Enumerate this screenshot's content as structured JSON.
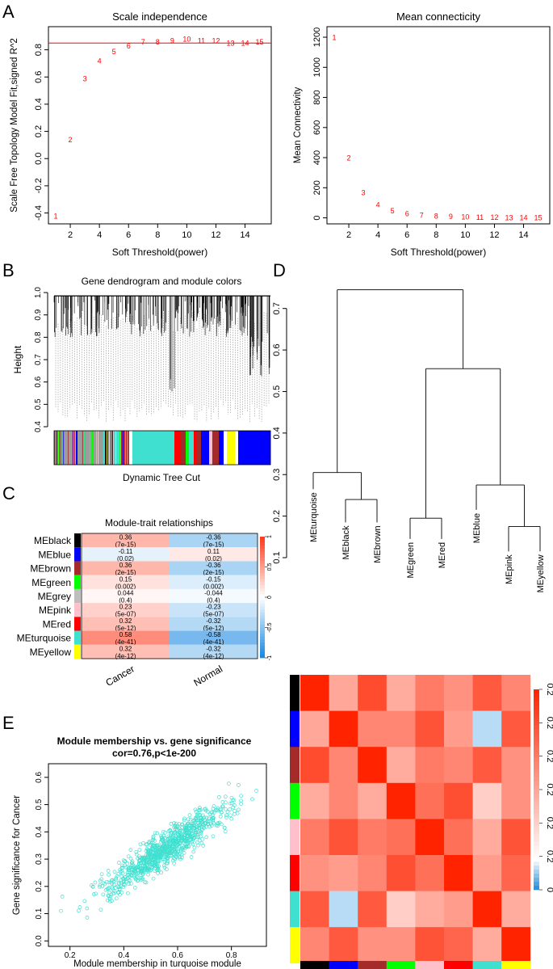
{
  "figure": {
    "panel_labels": [
      "A",
      "B",
      "C",
      "D",
      "E"
    ]
  },
  "chart_data": [
    {
      "id": "A1",
      "type": "scatter",
      "title": "Scale independence",
      "xlabel": "Soft Threshold(power)",
      "ylabel": "Scale Free Topology Model Fit,signed R^2",
      "xlim": [
        0.5,
        15.8
      ],
      "ylim": [
        -0.48,
        0.97
      ],
      "xticks": [
        2,
        4,
        6,
        8,
        10,
        12,
        14
      ],
      "yticks": [
        -0.4,
        -0.2,
        0.0,
        0.2,
        0.4,
        0.6,
        0.8
      ],
      "ytick_labels": [
        "-0.4",
        "-0.2",
        "0.0",
        "0.2",
        "0.4",
        "0.6",
        "0.8"
      ],
      "hline": 0.85,
      "hline_color": "#ff0000",
      "point_color": "#ff0000",
      "x": [
        1,
        2,
        3,
        4,
        5,
        6,
        7,
        8,
        9,
        10,
        11,
        12,
        13,
        14,
        15
      ],
      "y": [
        -0.42,
        0.14,
        0.59,
        0.72,
        0.79,
        0.83,
        0.86,
        0.86,
        0.87,
        0.88,
        0.87,
        0.87,
        0.85,
        0.85,
        0.86
      ],
      "point_labels": [
        "1",
        "2",
        "3",
        "4",
        "5",
        "6",
        "7",
        "8",
        "9",
        "10",
        "11",
        "12",
        "13",
        "14",
        "15"
      ]
    },
    {
      "id": "A2",
      "type": "scatter",
      "title": "Mean connecticity",
      "xlabel": "Soft Threshold(power)",
      "ylabel": "Mean Connectivity",
      "xlim": [
        0.5,
        15.8
      ],
      "ylim": [
        -40,
        1270
      ],
      "xticks": [
        2,
        4,
        6,
        8,
        10,
        12,
        14
      ],
      "yticks": [
        0,
        200,
        400,
        600,
        800,
        1000,
        1200
      ],
      "point_color": "#ff0000",
      "x": [
        1,
        2,
        3,
        4,
        5,
        6,
        7,
        8,
        9,
        10,
        11,
        12,
        13,
        14,
        15
      ],
      "y": [
        1200,
        400,
        170,
        90,
        48,
        30,
        20,
        15,
        10,
        8,
        6,
        5,
        4,
        3,
        3
      ],
      "point_labels": [
        "1",
        "2",
        "3",
        "4",
        "5",
        "6",
        "7",
        "8",
        "9",
        "10",
        "11",
        "12",
        "13",
        "14",
        "15"
      ]
    },
    {
      "id": "B",
      "type": "dendrogram",
      "title": "Gene dendrogram and module colors",
      "ylabel": "Height",
      "xlabel": "Dynamic Tree Cut",
      "ylim": [
        0.4,
        1.0
      ],
      "yticks": [
        0.4,
        0.5,
        0.6,
        0.7,
        0.8,
        0.9,
        1.0
      ],
      "ytick_labels": [
        "0.4",
        "0.5",
        "0.6",
        "0.7",
        "0.8",
        "0.9",
        "1.0"
      ],
      "color_bar": [
        {
          "color": "#9d9d9d",
          "width": 22
        },
        {
          "color": "#40e0d0",
          "width": 3
        },
        {
          "color": "#a52a2a",
          "width": 2
        },
        {
          "color": "#0000ff",
          "width": 2
        },
        {
          "color": "#9d9d9d",
          "width": 18
        },
        {
          "color": "#00ff00",
          "width": 2
        },
        {
          "color": "#9d9d9d",
          "width": 12
        },
        {
          "color": "#40e0d0",
          "width": 2
        },
        {
          "color": "#000000",
          "width": 2
        },
        {
          "color": "#9d9d9d",
          "width": 8
        },
        {
          "color": "#40e0d0",
          "width": 10
        },
        {
          "color": "#a52a2a",
          "width": 10
        },
        {
          "color": "#ffffff",
          "width": 4
        },
        {
          "color": "#40e0d0",
          "width": 52
        },
        {
          "color": "#ff0000",
          "width": 8
        },
        {
          "color": "#a52a2a",
          "width": 6
        },
        {
          "color": "#00ff00",
          "width": 4
        },
        {
          "color": "#40e0d0",
          "width": 6
        },
        {
          "color": "#ff0000",
          "width": 3
        },
        {
          "color": "#a52a2a",
          "width": 6
        },
        {
          "color": "#0000ff",
          "width": 10
        },
        {
          "color": "#ffc0cb",
          "width": 4
        },
        {
          "color": "#a52a2a",
          "width": 8
        },
        {
          "color": "#0000ff",
          "width": 6
        },
        {
          "color": "#ffffff",
          "width": 4
        },
        {
          "color": "#ffff00",
          "width": 10
        },
        {
          "color": "#ffffff",
          "width": 4
        },
        {
          "color": "#0000ff",
          "width": 40
        }
      ]
    },
    {
      "id": "C",
      "type": "heatmap",
      "title": "Module-trait relationships",
      "columns": [
        "Cancer",
        "Normal"
      ],
      "rows": [
        "MEblack",
        "MEblue",
        "MEbrown",
        "MEgreen",
        "MEgrey",
        "MEpink",
        "MEred",
        "MEturquoise",
        "MEyellow"
      ],
      "row_colors": [
        "#000000",
        "#0000ff",
        "#a52a2a",
        "#00ff00",
        "#bebebe",
        "#ffc0cb",
        "#ff0000",
        "#40e0d0",
        "#ffff00"
      ],
      "values": [
        [
          0.36,
          -0.36
        ],
        [
          -0.11,
          0.11
        ],
        [
          0.36,
          -0.36
        ],
        [
          0.15,
          -0.15
        ],
        [
          0.044,
          -0.044
        ],
        [
          0.23,
          -0.23
        ],
        [
          0.32,
          -0.32
        ],
        [
          0.58,
          -0.58
        ],
        [
          0.32,
          -0.32
        ]
      ],
      "cell_text": [
        [
          "0.36",
          "-0.36"
        ],
        [
          "-0.11",
          "0.11"
        ],
        [
          "0.36",
          "-0.36"
        ],
        [
          "0.15",
          "-0.15"
        ],
        [
          "0.044",
          "-0.044"
        ],
        [
          "0.23",
          "-0.23"
        ],
        [
          "0.32",
          "-0.32"
        ],
        [
          "0.58",
          "-0.58"
        ],
        [
          "0.32",
          "-0.32"
        ]
      ],
      "pvalues": [
        [
          "(7e-15)",
          "(7e-15)"
        ],
        [
          "(0.02)",
          "(0.02)"
        ],
        [
          "(2e-15)",
          "(2e-15)"
        ],
        [
          "(0.002)",
          "(0.002)"
        ],
        [
          "(0.4)",
          "(0.4)"
        ],
        [
          "(5e-07)",
          "(5e-07)"
        ],
        [
          "(5e-12)",
          "(5e-12)"
        ],
        [
          "(4e-41)",
          "(4e-41)"
        ],
        [
          "(4e-12)",
          "(4e-12)"
        ]
      ],
      "legend_range": [
        -1,
        1
      ],
      "legend_ticks": [
        "1",
        "0.5",
        "0",
        "-0.5",
        "-1"
      ]
    },
    {
      "id": "D",
      "type": "dendrogram",
      "ylim": [
        0.1,
        0.75
      ],
      "yticks": [
        0.1,
        0.2,
        0.3,
        0.4,
        0.5,
        0.6,
        0.7
      ],
      "ytick_labels": [
        "0.1",
        "0.2",
        "0.3",
        "0.4",
        "0.5",
        "0.6",
        "0.7"
      ],
      "leaves": [
        "MEturquoise",
        "MEblack",
        "MEbrown",
        "MEgreen",
        "MEred",
        "MEblue",
        "MEpink",
        "MEyellow"
      ],
      "merges": [
        {
          "a": "MEblack",
          "b": "MEbrown",
          "height": 0.24
        },
        {
          "a": "MEturquoise",
          "b": "(MEblack,MEbrown)",
          "height": 0.305
        },
        {
          "a": "MEgreen",
          "b": "MEred",
          "height": 0.195
        },
        {
          "a": "MEpink",
          "b": "MEyellow",
          "height": 0.175
        },
        {
          "a": "MEblue",
          "b": "(MEpink,MEyellow)",
          "height": 0.275
        },
        {
          "a": "(MEgreen,MEred)",
          "b": "(MEblue,MEpink,MEyellow)",
          "height": 0.555
        },
        {
          "a": "left",
          "b": "right",
          "height": 0.745
        }
      ]
    },
    {
      "id": "D-heatmap",
      "type": "heatmap",
      "legend_ticks": [
        "0.2",
        "0.2",
        "0.2",
        "0.2",
        "0.2",
        "0.2",
        "0"
      ],
      "row_colors": [
        "#000000",
        "#0000ff",
        "#a52a2a",
        "#00ff00",
        "#ffc0cb",
        "#ff0000",
        "#40e0d0",
        "#ffff00"
      ],
      "col_colors": [
        "#000000",
        "#0000ff",
        "#a52a2a",
        "#00ff00",
        "#ffc0cb",
        "#ff0000",
        "#40e0d0",
        "#ffff00"
      ],
      "matrix": [
        [
          1.0,
          0.4,
          0.82,
          0.38,
          0.6,
          0.5,
          0.75,
          0.55
        ],
        [
          0.4,
          1.0,
          0.55,
          0.55,
          0.78,
          0.45,
          0.05,
          0.75
        ],
        [
          0.82,
          0.55,
          1.0,
          0.38,
          0.6,
          0.55,
          0.75,
          0.5
        ],
        [
          0.38,
          0.55,
          0.38,
          1.0,
          0.65,
          0.8,
          0.22,
          0.5
        ],
        [
          0.6,
          0.78,
          0.6,
          0.65,
          1.0,
          0.65,
          0.38,
          0.78
        ],
        [
          0.5,
          0.45,
          0.55,
          0.8,
          0.65,
          1.0,
          0.45,
          0.7
        ],
        [
          0.75,
          0.05,
          0.75,
          0.22,
          0.38,
          0.45,
          1.0,
          0.38
        ],
        [
          0.55,
          0.75,
          0.5,
          0.5,
          0.78,
          0.7,
          0.38,
          1.0
        ]
      ]
    },
    {
      "id": "E",
      "type": "scatter",
      "title": "Module membership vs. gene significance",
      "subtitle": "cor=0.76,p<1e-200",
      "xlabel": "Module membership in turquoise module",
      "ylabel": "Gene significance for Cancer",
      "xlim": [
        0.12,
        0.93
      ],
      "ylim": [
        -0.02,
        0.65
      ],
      "xticks": [
        0.2,
        0.4,
        0.6,
        0.8
      ],
      "xtick_labels": [
        "0.2",
        "0.4",
        "0.6",
        "0.8"
      ],
      "yticks": [
        0.0,
        0.1,
        0.2,
        0.3,
        0.4,
        0.5,
        0.6
      ],
      "ytick_labels": [
        "0.0",
        "0.1",
        "0.2",
        "0.3",
        "0.4",
        "0.5",
        "0.6"
      ],
      "point_color": "#40e0d0",
      "correlation": 0.76,
      "n_points": 1400,
      "trend": {
        "slope": 0.66,
        "intercept": -0.03,
        "noise_sd": 0.085
      }
    }
  ]
}
